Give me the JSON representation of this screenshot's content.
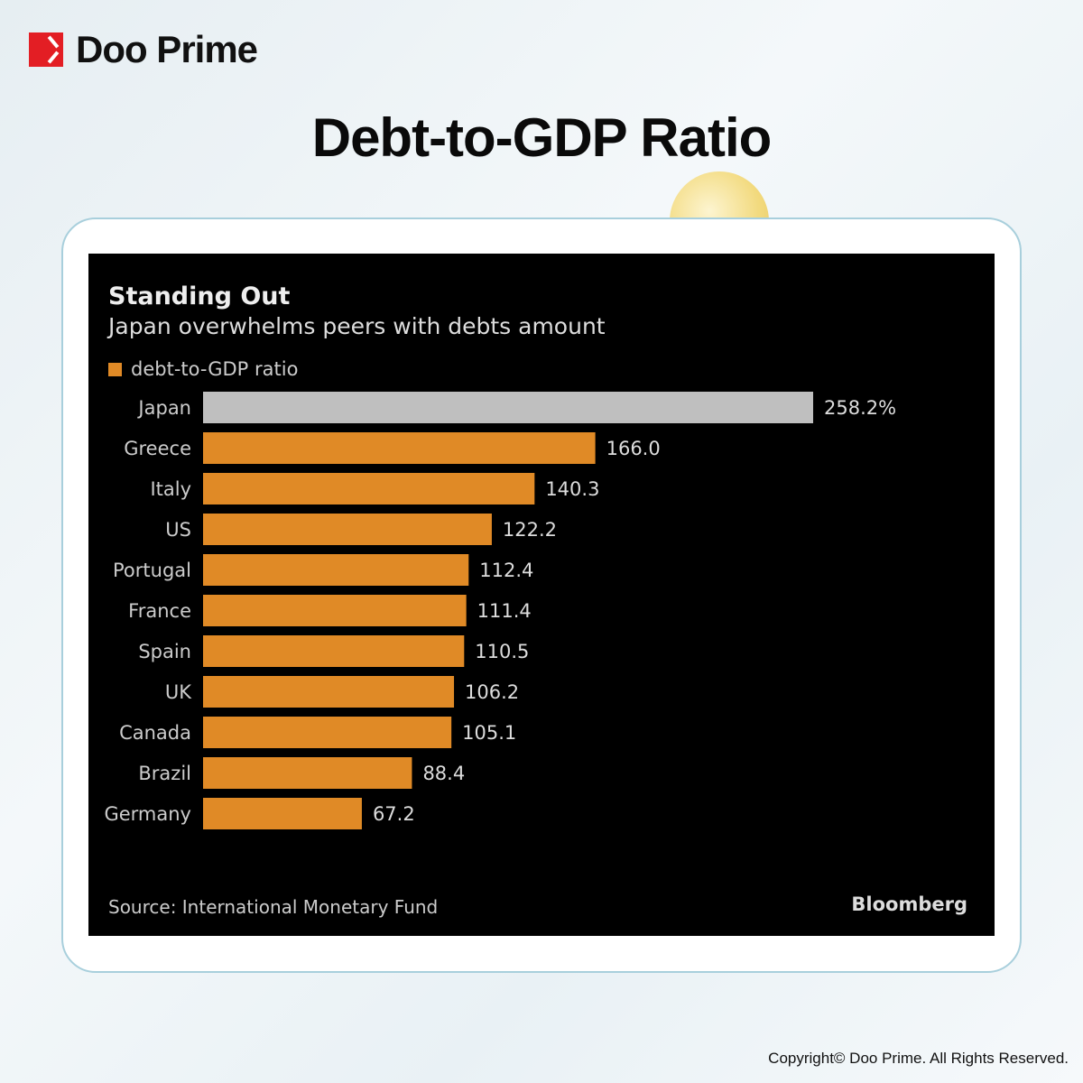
{
  "brand": {
    "name": "Doo Prime",
    "copyright": "Copyright© Doo Prime. All Rights Reserved."
  },
  "page_title": "Debt-to-GDP Ratio",
  "chart_data": {
    "type": "bar",
    "orientation": "horizontal",
    "title": "Standing Out",
    "subtitle": "Japan overwhelms peers with debts amount",
    "legend": "debt-to-GDP ratio",
    "categories": [
      "Japan",
      "Greece",
      "Italy",
      "US",
      "Portugal",
      "France",
      "Spain",
      "UK",
      "Canada",
      "Brazil",
      "Germany"
    ],
    "values": [
      258.2,
      166.0,
      140.3,
      122.2,
      112.4,
      111.4,
      110.5,
      106.2,
      105.1,
      88.4,
      67.2
    ],
    "labels": [
      "258.2%",
      "166.0",
      "140.3",
      "122.2",
      "112.4",
      "111.4",
      "110.5",
      "106.2",
      "105.1",
      "88.4",
      "67.2"
    ],
    "colors": {
      "default": "#e08a26",
      "highlight": "#bfbfbf"
    },
    "highlight": "Japan",
    "source": "Source: International Monetary Fund",
    "publisher": "Bloomberg"
  }
}
